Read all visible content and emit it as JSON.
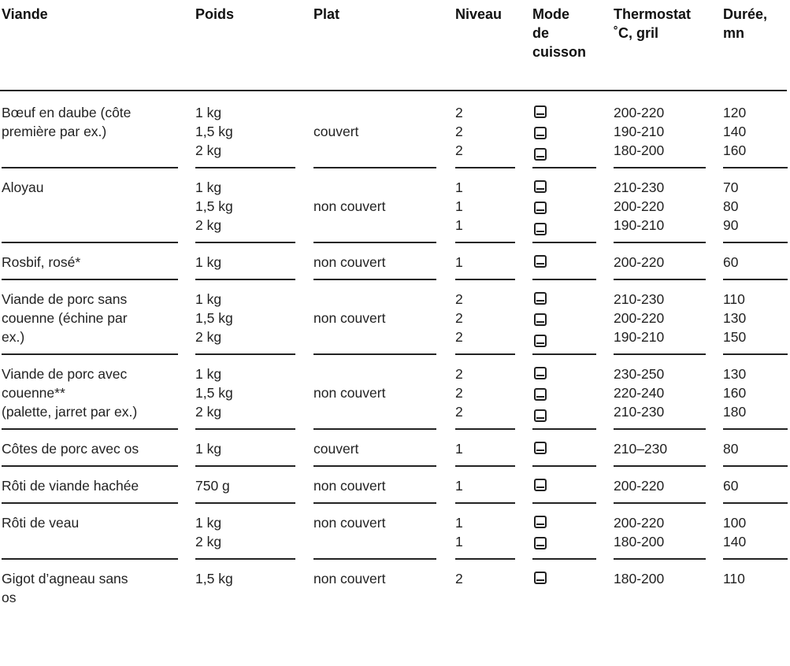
{
  "headers": [
    [
      "Viande"
    ],
    [
      "Poids"
    ],
    [
      "Plat"
    ],
    [
      "Niveau"
    ],
    [
      "Mode",
      "de",
      "cuisson"
    ],
    [
      "Thermostat",
      "˚C, gril"
    ],
    [
      "Durée,",
      "mn"
    ]
  ],
  "icon": "oven-top-bottom-heat-icon",
  "rows": [
    {
      "viande": [
        "Bœuf en daube (côte",
        "première par ex.)"
      ],
      "poids": [
        "1 kg",
        "1,5 kg",
        "2 kg"
      ],
      "plat": "couvert",
      "niveau": [
        "2",
        "2",
        "2"
      ],
      "thermostat": [
        "200-220",
        "190-210",
        "180-200"
      ],
      "duree": [
        "120",
        "140",
        "160"
      ]
    },
    {
      "viande": [
        "Aloyau"
      ],
      "poids": [
        "1 kg",
        "1,5 kg",
        "2 kg"
      ],
      "plat": "non couvert",
      "niveau": [
        "1",
        "1",
        "1"
      ],
      "thermostat": [
        "210-230",
        "200-220",
        "190-210"
      ],
      "duree": [
        "70",
        "80",
        "90"
      ]
    },
    {
      "viande": [
        "Rosbif, rosé*"
      ],
      "poids": [
        "1 kg"
      ],
      "plat": "non couvert",
      "niveau": [
        "1"
      ],
      "thermostat": [
        "200-220"
      ],
      "duree": [
        "60"
      ]
    },
    {
      "viande": [
        "Viande de porc sans",
        "couenne (échine par",
        "ex.)"
      ],
      "poids": [
        "1 kg",
        "1,5 kg",
        "2 kg"
      ],
      "plat": "non couvert",
      "niveau": [
        "2",
        "2",
        "2"
      ],
      "thermostat": [
        "210-230",
        "200-220",
        "190-210"
      ],
      "duree": [
        "110",
        "130",
        "150"
      ]
    },
    {
      "viande": [
        "Viande de porc avec",
        "couenne**",
        "(palette, jarret par ex.)"
      ],
      "poids": [
        "1 kg",
        "1,5 kg",
        "2 kg"
      ],
      "plat": "non couvert",
      "niveau": [
        "2",
        "2",
        "2"
      ],
      "thermostat": [
        "230-250",
        "220-240",
        "210-230"
      ],
      "duree": [
        "130",
        "160",
        "180"
      ]
    },
    {
      "viande": [
        "Côtes de porc avec os"
      ],
      "poids": [
        "1 kg"
      ],
      "plat": "couvert",
      "niveau": [
        "1"
      ],
      "thermostat": [
        "210–230"
      ],
      "duree": [
        "80"
      ]
    },
    {
      "viande": [
        "Rôti de viande hachée"
      ],
      "poids": [
        "750 g"
      ],
      "plat": "non couvert",
      "niveau": [
        "1"
      ],
      "thermostat": [
        "200-220"
      ],
      "duree": [
        "60"
      ]
    },
    {
      "viande": [
        "Rôti de veau"
      ],
      "poids": [
        "1 kg",
        "2 kg"
      ],
      "plat": "non couvert",
      "niveau": [
        "1",
        "1"
      ],
      "thermostat": [
        "200-220",
        "180-200"
      ],
      "duree": [
        "100",
        "140"
      ]
    },
    {
      "viande": [
        "Gigot d’agneau sans",
        "os"
      ],
      "poids": [
        "1,5 kg"
      ],
      "plat": "non couvert",
      "niveau": [
        "2"
      ],
      "thermostat": [
        "180-200"
      ],
      "duree": [
        "110"
      ]
    }
  ]
}
